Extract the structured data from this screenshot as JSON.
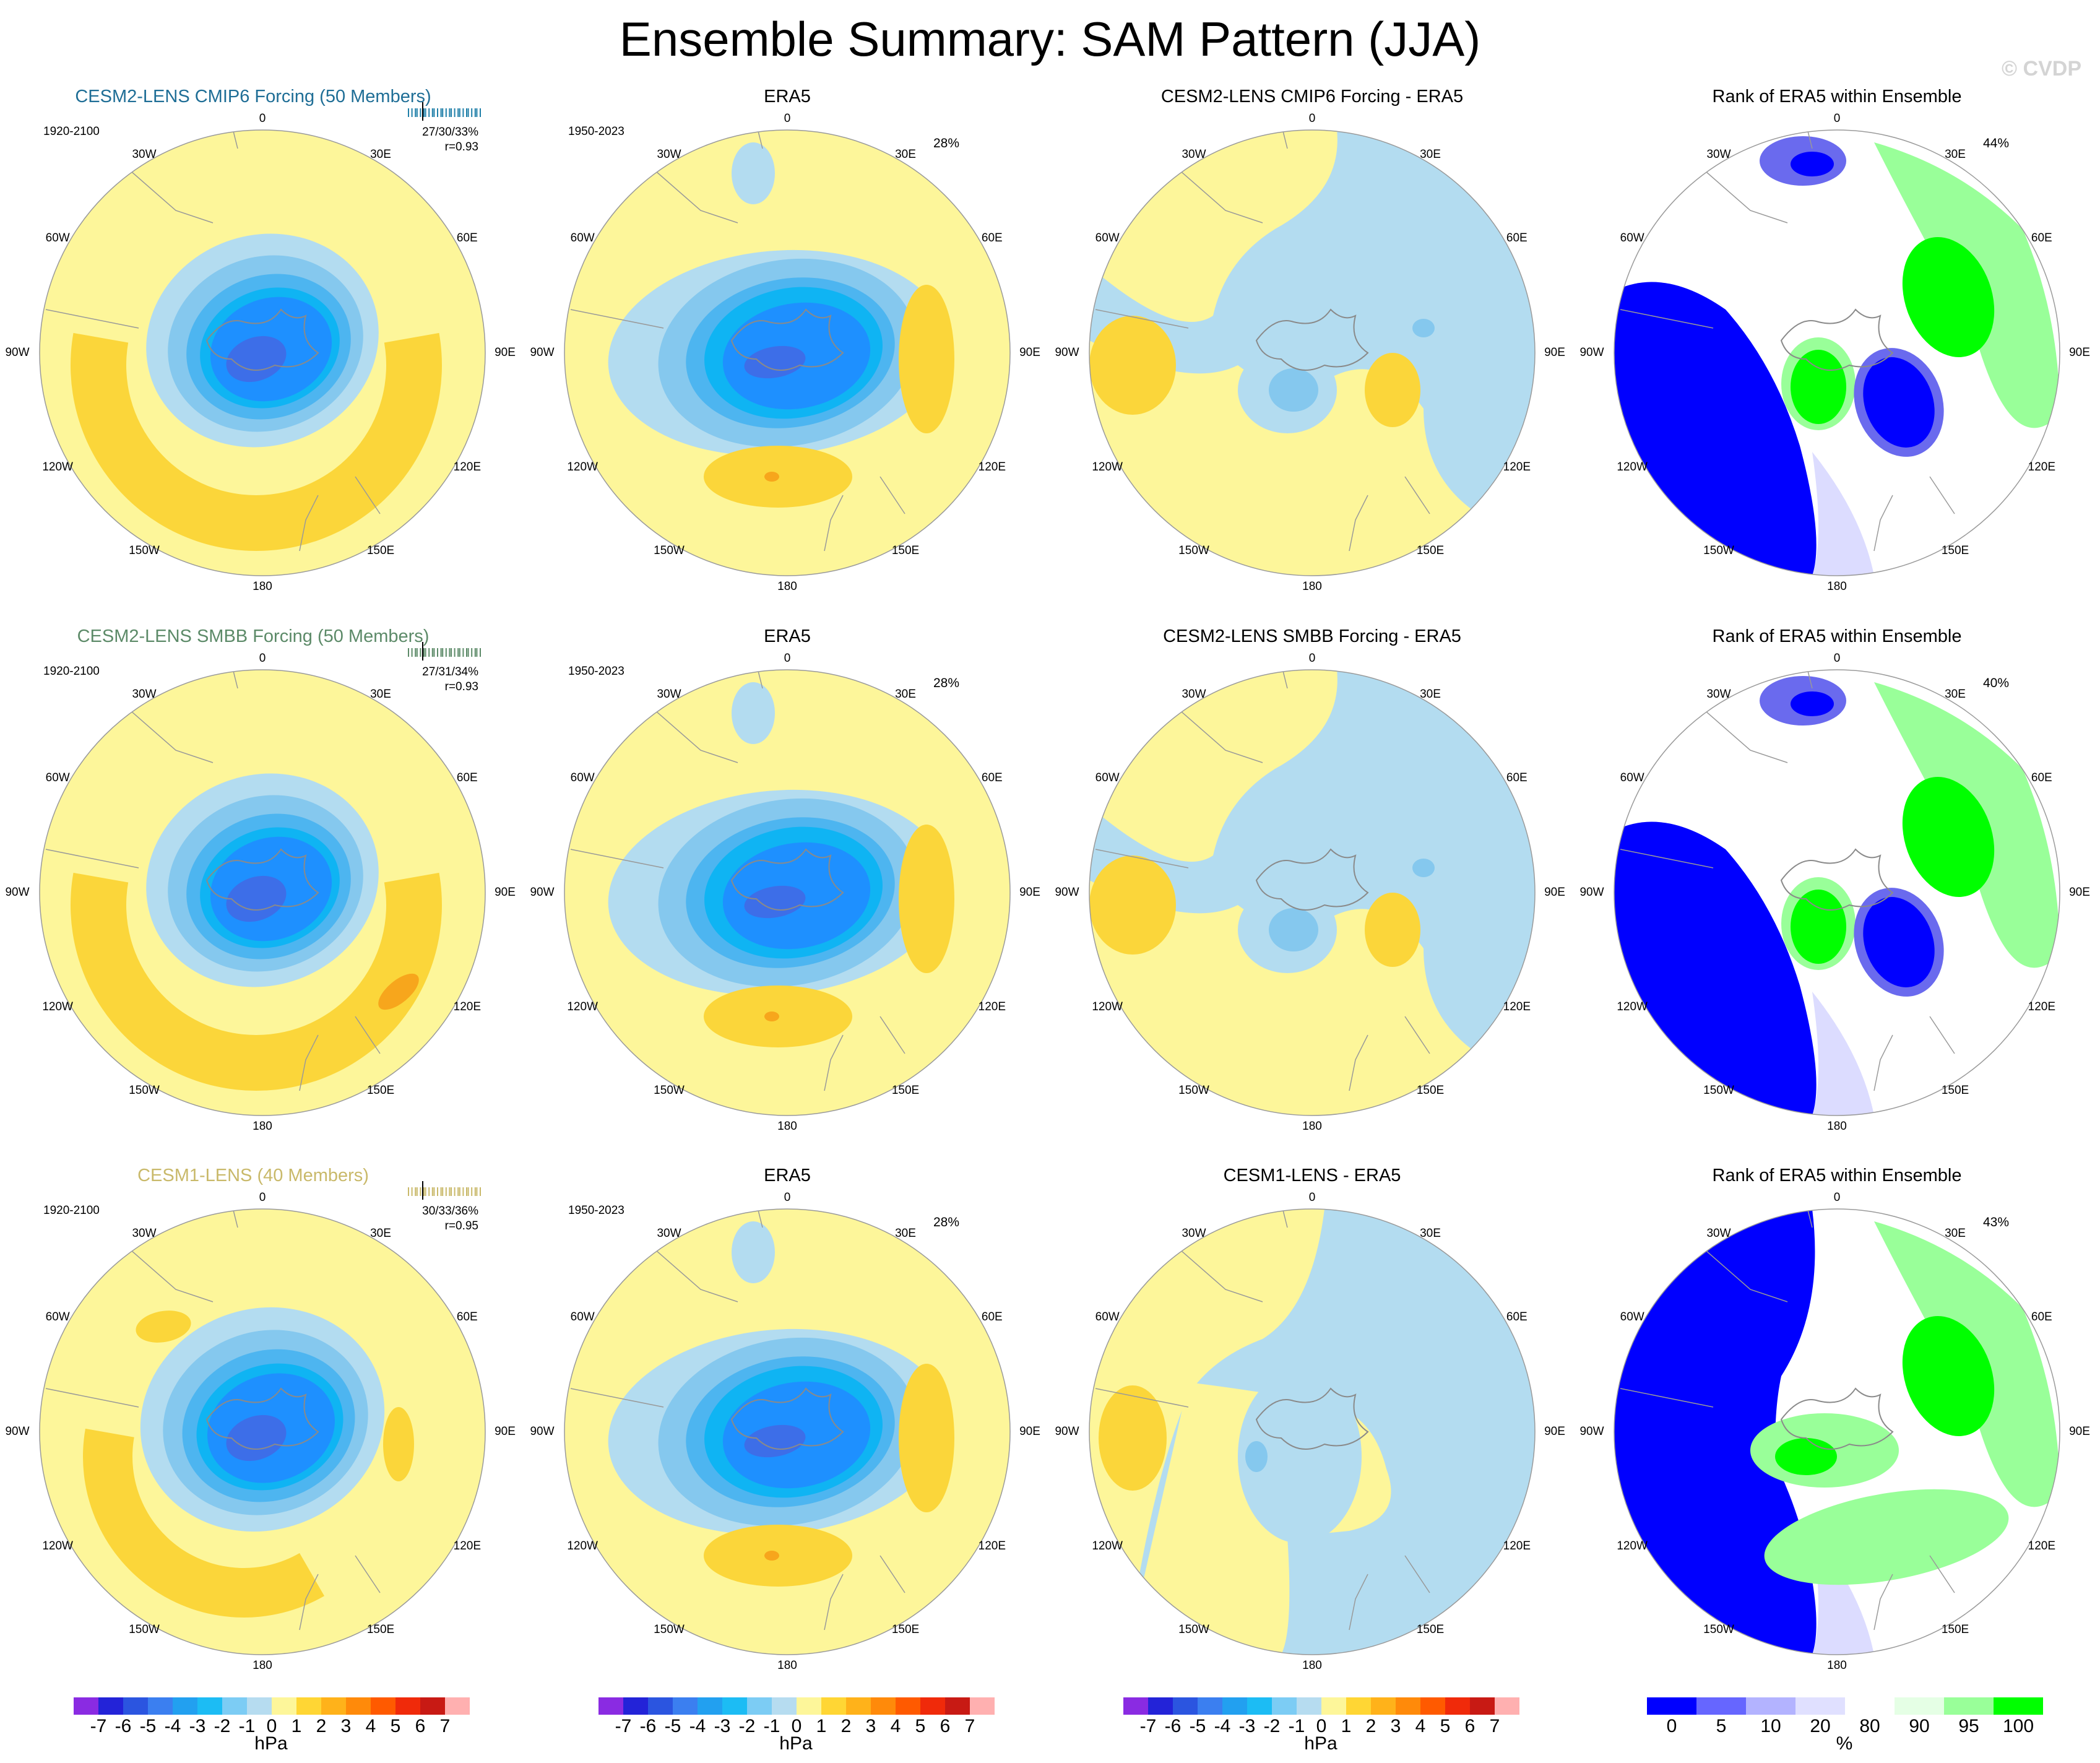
{
  "title": "Ensemble Summary: SAM Pattern (JJA)",
  "watermark": "© CVDP",
  "lon_labels": [
    "0",
    "30E",
    "60E",
    "90E",
    "120E",
    "150E",
    "180",
    "150W",
    "120W",
    "90W",
    "60W",
    "30W"
  ],
  "rows": [
    {
      "ensemble": {
        "title": "CESM2-LENS CMIP6 Forcing (50 Members)",
        "title_color": "#1f6e96",
        "period": "1920-2100",
        "stats_line1": "27/30/33%",
        "stats_line2": "r=0.93",
        "tick_color": "#1f7fa8"
      },
      "era5": {
        "title": "ERA5",
        "period": "1950-2023",
        "pct": "28%"
      },
      "diff": {
        "title": "CESM2-LENS CMIP6 Forcing - ERA5"
      },
      "rank": {
        "title": "Rank of ERA5 within Ensemble",
        "pct": "44%"
      }
    },
    {
      "ensemble": {
        "title": "CESM2-LENS SMBB Forcing (50 Members)",
        "title_color": "#5c8a68",
        "period": "1920-2100",
        "stats_line1": "27/31/34%",
        "stats_line2": "r=0.93",
        "tick_color": "#5c8a68"
      },
      "era5": {
        "title": "ERA5",
        "period": "1950-2023",
        "pct": "28%"
      },
      "diff": {
        "title": "CESM2-LENS SMBB Forcing - ERA5"
      },
      "rank": {
        "title": "Rank of ERA5 within Ensemble",
        "pct": "40%"
      }
    },
    {
      "ensemble": {
        "title": "CESM1-LENS (40 Members)",
        "title_color": "#c9b96a",
        "period": "1920-2100",
        "stats_line1": "30/33/36%",
        "stats_line2": "r=0.95",
        "tick_color": "#c9b96a"
      },
      "era5": {
        "title": "ERA5",
        "period": "1950-2023",
        "pct": "28%"
      },
      "diff": {
        "title": "CESM1-LENS - ERA5"
      },
      "rank": {
        "title": "Rank of ERA5 within Ensemble",
        "pct": "43%"
      }
    }
  ],
  "colorbar_hpa": {
    "unit": "hPa",
    "labels": [
      "-7",
      "-6",
      "-5",
      "-4",
      "-3",
      "-2",
      "-1",
      "0",
      "1",
      "2",
      "3",
      "4",
      "5",
      "6",
      "7"
    ],
    "colors": [
      "#8a2be2",
      "#2323d8",
      "#2b55e0",
      "#3b7ff0",
      "#22a0f0",
      "#1cbcf4",
      "#7cccf4",
      "#b6dcf0",
      "#fdf69a",
      "#ffd634",
      "#ffb21a",
      "#ff8a0a",
      "#ff5a00",
      "#f02a0a",
      "#c81a14",
      "#ffb0b0"
    ]
  },
  "colorbar_rank": {
    "unit": "%",
    "labels": [
      "0",
      "5",
      "10",
      "20",
      "80",
      "90",
      "95",
      "100"
    ],
    "colors": [
      "#0000ff",
      "#6666ff",
      "#b3b3ff",
      "#e0e0ff",
      "#ffffff",
      "#e5ffe5",
      "#99ff99",
      "#00ff00"
    ]
  },
  "colors": {
    "neg1": "#b3dcf0",
    "neg2": "#85c8ee",
    "neg3": "#4db5f0",
    "neg4": "#0fb4f3",
    "neg5": "#1e90ff",
    "neg6": "#3d6ee8",
    "pos1": "#fdf69a",
    "pos2": "#fbd63a",
    "pos3": "#f7a61c",
    "rank_low": "#0000ff",
    "rank_mid_low": "#6a6aee",
    "rank_light_low": "#dcdcff",
    "rank_high": "#00ff00",
    "rank_mid_high": "#99ff99",
    "rank_light_high": "#e5ffe5"
  }
}
